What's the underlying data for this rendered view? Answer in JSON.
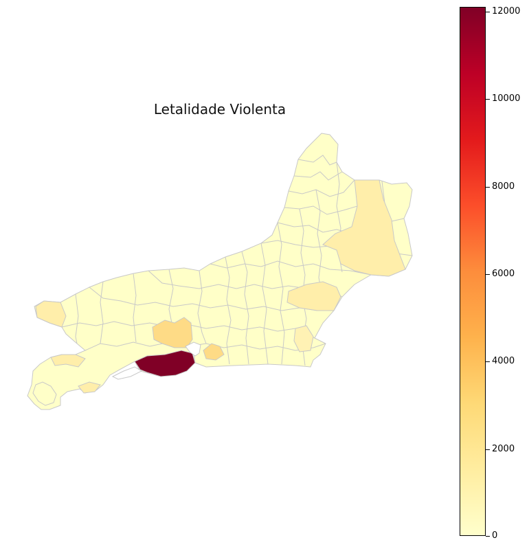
{
  "map": {
    "title": "Letalidade Violenta"
  },
  "colorbar": {
    "ticks": [
      "12000",
      "10000",
      "8000",
      "6000",
      "4000",
      "2000",
      "0"
    ],
    "min": 0,
    "max": 12100,
    "colormap": "YlOrRd",
    "colors": [
      "#ffffcc",
      "#ffeda0",
      "#fed976",
      "#feb24c",
      "#fd8d3c",
      "#fc4e2a",
      "#e31a1c",
      "#bd0026",
      "#800026"
    ]
  },
  "regions": {
    "border_color": "#c8c8c8",
    "base_color": "#ffffcc",
    "highlight_color": "#800026"
  }
}
